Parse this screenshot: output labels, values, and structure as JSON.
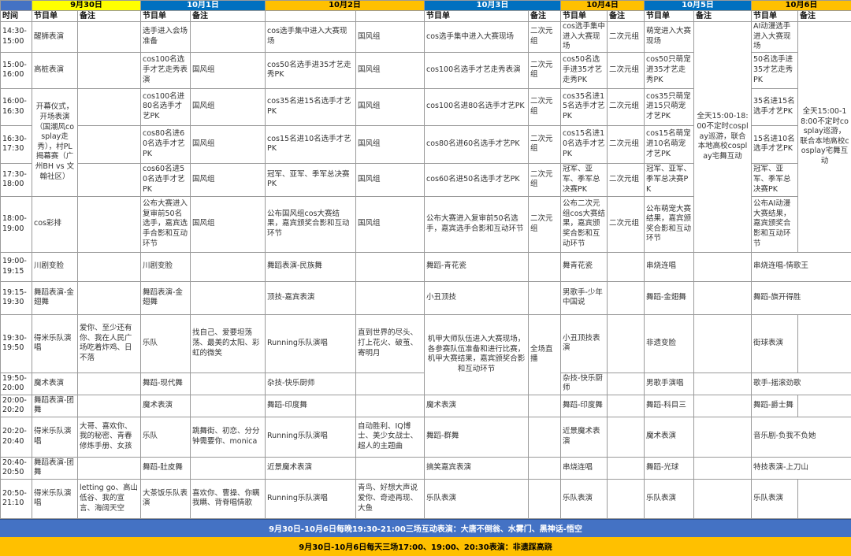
{
  "colors": {
    "corner": "#4472C4",
    "blue": "#0070C0",
    "orange": "#FFC000",
    "yellow": "#FFFF00",
    "banner_blue": "#4472C4"
  },
  "header": {
    "time_label": "时间",
    "days": [
      {
        "date": "9月30日",
        "color": "yellow",
        "program": "节目单",
        "note": "备注"
      },
      {
        "date": "10月1日",
        "color": "blue",
        "program": "节目单",
        "note": "备注"
      },
      {
        "date": "10月2日",
        "color": "orange",
        "program": "",
        "note": ""
      },
      {
        "date": "10月3日",
        "color": "blue",
        "program": "节目单",
        "note": "备注"
      },
      {
        "date": "10月4日",
        "color": "orange",
        "program": "节目单",
        "note": "备注"
      },
      {
        "date": "10月5日",
        "color": "blue",
        "program": "节目单",
        "note": "备注"
      },
      {
        "date": "10月6日",
        "color": "orange",
        "program": "节目单",
        "note": "备注"
      }
    ]
  },
  "rows": [
    {
      "time": "14:30-15:00",
      "cells": [
        "醒狮表演",
        "",
        "选手进入会场准备",
        "",
        "cos选手集中进入大赛现场",
        "国风组",
        "cos选手集中进入大赛现场",
        "二次元组",
        "cos选手集中进入大赛现场",
        "二次元组",
        "萌宠进入大赛现场",
        "全天15:00-18:00不定时cosplay巡游，联合本地高校cosplay宅舞互动",
        "AI动漫选手进入大赛现场",
        "全天15:00-18:00不定时cosplay巡游，联合本地高校cosplay宅舞互动"
      ]
    },
    {
      "time": "15:00-16:00",
      "cells": [
        "高桩表演",
        "",
        "cos100名选手才艺走秀表演",
        "国风组",
        "cos50名选手进35才艺走秀PK",
        "国风组",
        "cos100名选手才艺走秀表演",
        "二次元组",
        "cos50名选手进35才艺走秀PK",
        "二次元组",
        "cos50只萌宠进35才艺走秀PK",
        null,
        "50名选手进35才艺走秀PK",
        null
      ]
    },
    {
      "time": "16:00-16:30",
      "cells": [
        "开幕仪式，开场表演（国潮风cosplay走秀），村PL揭幕赛（广州BH vs 文翰社区）",
        "",
        "cos100名进80名选手才艺PK",
        "国风组",
        "cos35名进15名选手才艺PK",
        "国风组",
        "cos100名进80名选手才艺PK",
        "二次元组",
        "cos35名进15名选手才艺PK",
        "二次元组",
        "cos35只萌宠进15只萌宠才艺PK",
        null,
        "35名进15名选手才艺PK",
        null
      ]
    },
    {
      "time": "16:30-17:30",
      "cells": [
        null,
        "",
        "cos80名进60名选手才艺PK",
        "国风组",
        "cos15名进10名选手才艺PK",
        "国风组",
        "cos80名进60名选手才艺PK",
        "二次元组",
        "cos15名进10名选手才艺PK",
        "二次元组",
        "cos15名萌宠进10名萌宠才艺PK",
        null,
        "15名进10名选手才艺PK",
        null
      ]
    },
    {
      "time": "17:30-18:00",
      "cells": [
        null,
        "",
        "cos60名进50名选手才艺PK",
        "国风组",
        "冠军、亚军、季军总决赛PK",
        "国风组",
        "cos60名进50名选手才艺PK",
        "二次元组",
        "冠军、亚军、季军总决赛PK",
        "二次元组",
        "冠军、亚军、季军总决赛PK",
        null,
        "冠军、亚军、季军总决赛PK",
        null
      ]
    },
    {
      "time": "18:00-19:00",
      "cells": [
        "cos彩排",
        "",
        "公布大赛进入复审前50名选手，嘉宾选手合影和互动环节",
        "国风组",
        "公布国风组cos大赛结果，嘉宾颁奖合影和互动环节",
        "国风组",
        "公布大赛进入复审前50名选手，嘉宾选手合影和互动环节",
        "二次元组",
        "公布二次元组cos大赛结果，嘉宾颁奖合影和互动环节",
        "二次元组",
        "公布萌宠大赛结果，嘉宾颁奖合影和互动环节",
        null,
        "公布AI动漫大赛结果，嘉宾颁奖合影和互动环节",
        null
      ]
    },
    {
      "time": "19:00-19:15",
      "cells": [
        "川剧变脸",
        "",
        "川剧变脸",
        "",
        "舞蹈表演-民族舞",
        "",
        "舞蹈-青花瓷",
        "",
        "舞青花瓷",
        "",
        "串烧连唱",
        "",
        "串烧连唱-情歌王",
        null
      ]
    },
    {
      "time": "19:15-19:30",
      "cells": [
        "舞蹈表演-金翅舞",
        "",
        "舞蹈表演-金翅舞",
        "",
        "顶技-嘉宾表演",
        "",
        "小丑顶技",
        "",
        "男歌手-少年中国说",
        "",
        "舞蹈-金翅舞",
        "",
        "舞蹈-旗开得胜",
        null
      ]
    },
    {
      "time": "19:30-19:50",
      "cells": [
        "得米乐队演唱",
        "爱你、至少还有你、我在人民广场吃着炸鸡、日不落",
        "乐队",
        "找自己、爱要坦荡荡、最美的太阳、彩虹的微笑",
        "Running乐队演唱",
        "直到世界的尽头、打上花火、破茧、寄明月",
        "机甲大师队伍进入大赛现场，各参赛队伍准备和进行比赛，机甲大赛结果，嘉宾颁奖合影和互动环节",
        "全场直播",
        "小丑顶技表演",
        "",
        "非遗变脸",
        "",
        "街球表演",
        ""
      ]
    },
    {
      "time": "19:50-20:00",
      "cells": [
        "魔术表演",
        "",
        "舞蹈-现代舞",
        "",
        "杂技-快乐厨师",
        "",
        null,
        null,
        "杂技-快乐厨师",
        "",
        "男歌手演唱",
        "",
        "歌手-摇滚劲歌",
        null
      ]
    },
    {
      "time": "20:00-20:20",
      "cells": [
        "舞蹈表演-团舞",
        "",
        "魔术表演",
        "",
        "舞蹈-印度舞",
        "",
        "魔术表演",
        "",
        "舞蹈-印度舞",
        "",
        "舞蹈-科目三",
        "",
        "舞蹈-爵士舞",
        ""
      ]
    },
    {
      "time": "20:20-20:40",
      "cells": [
        "得米乐队演唱",
        "大哥、喜欢你、我的秘密、青春修炼手册、女孩",
        "乐队",
        "跳舞街、初恋、分分钟需要你、monica",
        "Running乐队演唱",
        "自动胜利、IQ博士、美少女战士、超人的主题曲",
        "舞蹈-群舞",
        "",
        "近景魔术表演",
        "",
        "魔术表演",
        "",
        "音乐剧-负我不负她",
        null
      ]
    },
    {
      "time": "20:40-20:50",
      "cells": [
        "舞蹈表演-团舞",
        "",
        "舞蹈-肚皮舞",
        "",
        "近景魔术表演",
        "",
        "搞笑嘉宾表演",
        "",
        "串烧连唱",
        "",
        "舞蹈-光球",
        "",
        "特技表演-上刀山",
        null
      ]
    },
    {
      "time": "20:50-21:10",
      "cells": [
        "得米乐队演唱",
        "letting go、高山低谷、我的宣言、海阔天空",
        "大茶饭乐队表演",
        "喜欢你、曹操、你瞒我瞒、背脊唱情歌",
        "Running乐队演唱",
        "青鸟、好想大声说爱你、奇迹再现、大鱼",
        "乐队表演",
        "",
        "乐队表演",
        "",
        "乐队表演",
        "",
        "乐队表演",
        ""
      ]
    }
  ],
  "footer": {
    "banner1": "9月30日-10月6日每晚19:30-21:00三场互动表演：大唐不倒翁、水雾门、黑神话-悟空",
    "banner2": "9月30日-10月6日每天三场17:00、19:00、20:30表演：非遗踩高跷"
  }
}
